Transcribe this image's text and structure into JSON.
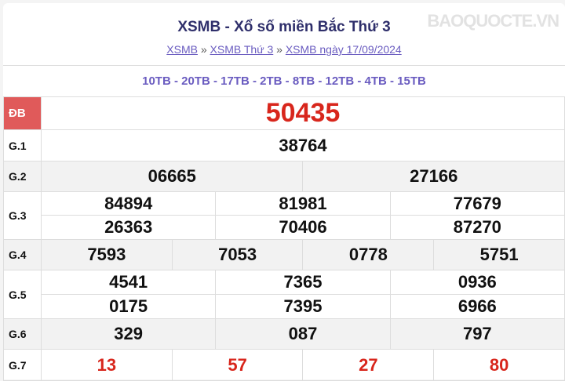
{
  "title": "XSMB - Xổ số miền Bắc Thứ 3",
  "breadcrumb": [
    {
      "label": "XSMB"
    },
    {
      "label": "XSMB Thứ 3"
    },
    {
      "label": "XSMB ngày 17/09/2024"
    }
  ],
  "separator": "»",
  "codes": "10TB - 20TB - 17TB - 2TB - 8TB - 12TB - 4TB - 15TB",
  "labels": {
    "db": "ĐB",
    "g1": "G.1",
    "g2": "G.2",
    "g3": "G.3",
    "g4": "G.4",
    "g5": "G.5",
    "g6": "G.6",
    "g7": "G.7"
  },
  "prizes": {
    "db": "50435",
    "g1": "38764",
    "g2": [
      "06665",
      "27166"
    ],
    "g3": [
      "84894",
      "81981",
      "77679",
      "26363",
      "70406",
      "87270"
    ],
    "g4": [
      "7593",
      "7053",
      "0778",
      "5751"
    ],
    "g5": [
      "4541",
      "7365",
      "0936",
      "0175",
      "7395",
      "6966"
    ],
    "g6": [
      "329",
      "087",
      "797"
    ],
    "g7": [
      "13",
      "57",
      "27",
      "80"
    ]
  },
  "watermark": "BAOQUOCTE.VN",
  "colors": {
    "accent": "#6a5cc0",
    "special": "#d8261c",
    "db_badge": "#e05a5a"
  }
}
